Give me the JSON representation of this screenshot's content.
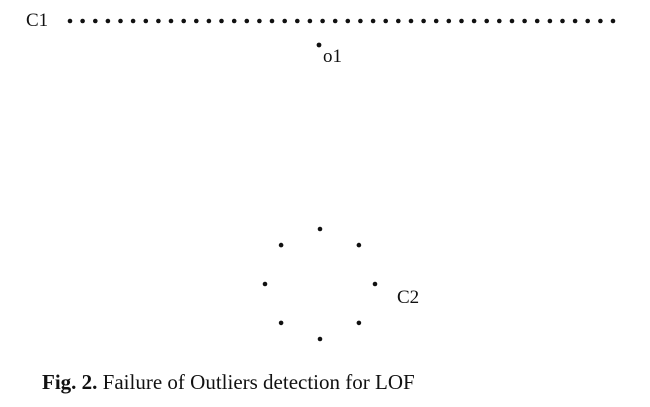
{
  "figure": {
    "cluster1_label": "C1",
    "outlier_label": "o1",
    "cluster2_label": "C2",
    "cluster1_point_count": 44,
    "cluster2_point_count": 8,
    "point_color": "#111111"
  },
  "caption": {
    "label": "Fig. 2.",
    "text": "Failure of Outliers detection for LOF"
  }
}
